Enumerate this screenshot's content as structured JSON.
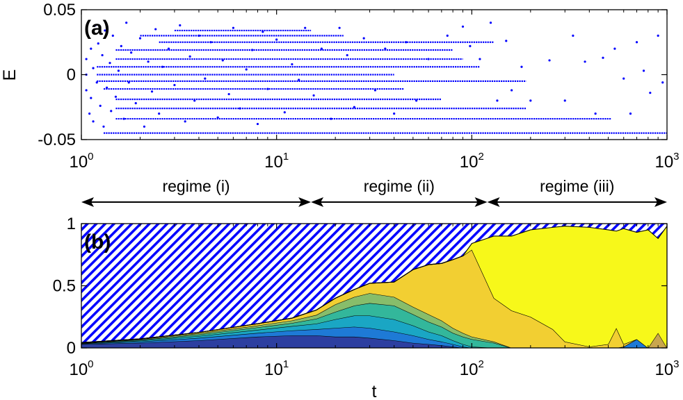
{
  "chart_data": [
    {
      "panel": "(a)",
      "type": "scatter",
      "xscale": "log",
      "xlim": [
        1,
        1000
      ],
      "ylim": [
        -0.05,
        0.05
      ],
      "ylabel": "E",
      "xlabel": "",
      "yticks": [
        "0.05",
        "0",
        "-0.05"
      ],
      "xticks": [
        {
          "base": "10",
          "exp": "0"
        },
        {
          "base": "10",
          "exp": "1"
        },
        {
          "base": "10",
          "exp": "2"
        },
        {
          "base": "10",
          "exp": "3"
        }
      ],
      "marker_color": "#0000ff",
      "points": [
        [
          1.06,
          0.012
        ],
        [
          1.06,
          0.0
        ],
        [
          1.06,
          -0.012
        ],
        [
          1.08,
          0.03
        ],
        [
          1.1,
          -0.03
        ],
        [
          1.12,
          0.02
        ],
        [
          1.12,
          -0.018
        ],
        [
          1.15,
          0.005
        ],
        [
          1.15,
          -0.036
        ],
        [
          1.18,
          0.038
        ],
        [
          1.2,
          -0.006
        ],
        [
          1.22,
          0.024
        ],
        [
          1.25,
          -0.024
        ],
        [
          1.28,
          0.015
        ],
        [
          1.3,
          -0.04
        ],
        [
          1.32,
          0.034
        ],
        [
          1.35,
          -0.01
        ],
        [
          1.4,
          0.009
        ],
        [
          1.42,
          -0.028
        ],
        [
          1.45,
          0.03
        ],
        [
          1.5,
          -0.017
        ],
        [
          1.55,
          0.003
        ],
        [
          1.6,
          0.022
        ],
        [
          1.65,
          -0.034
        ],
        [
          1.7,
          0.04
        ],
        [
          1.75,
          -0.006
        ],
        [
          1.8,
          0.017
        ],
        [
          1.9,
          -0.022
        ],
        [
          2.0,
          0.028
        ],
        [
          2.1,
          -0.04
        ],
        [
          2.2,
          0.01
        ],
        [
          2.3,
          -0.013
        ],
        [
          2.4,
          0.035
        ],
        [
          2.5,
          -0.03
        ],
        [
          2.6,
          0.006
        ],
        [
          2.8,
          0.02
        ],
        [
          3.0,
          -0.008
        ],
        [
          3.2,
          0.038
        ],
        [
          3.4,
          -0.036
        ],
        [
          3.6,
          0.014
        ],
        [
          3.8,
          -0.02
        ],
        [
          4.0,
          0.03
        ],
        [
          4.3,
          -0.003
        ],
        [
          4.6,
          0.025
        ],
        [
          5.0,
          -0.033
        ],
        [
          5.3,
          0.011
        ],
        [
          5.7,
          -0.015
        ],
        [
          6.0,
          0.036
        ],
        [
          6.5,
          -0.026
        ],
        [
          7.0,
          0.004
        ],
        [
          7.5,
          0.019
        ],
        [
          8.0,
          -0.038
        ],
        [
          8.5,
          0.033
        ],
        [
          9.0,
          -0.011
        ],
        [
          10.0,
          0.027
        ],
        [
          11.0,
          -0.029
        ],
        [
          12.0,
          0.008
        ],
        [
          13.0,
          -0.004
        ],
        [
          14.0,
          0.036
        ],
        [
          15.5,
          -0.016
        ],
        [
          17.0,
          0.02
        ],
        [
          19.0,
          -0.034
        ],
        [
          21.0,
          0.036
        ],
        [
          23.0,
          0.015
        ],
        [
          25.0,
          -0.025
        ],
        [
          28.0,
          0.028
        ],
        [
          32.0,
          -0.012
        ],
        [
          36.0,
          0.02
        ],
        [
          40.0,
          -0.03
        ],
        [
          46.0,
          0.025
        ],
        [
          52.0,
          -0.02
        ],
        [
          60.0,
          0.012
        ],
        [
          75.0,
          0.03
        ],
        [
          90.0,
          0.037
        ],
        [
          98.0,
          0.022
        ],
        [
          110.0,
          0.012
        ],
        [
          125.0,
          0.04
        ],
        [
          135.0,
          -0.02
        ],
        [
          150.0,
          0.026
        ],
        [
          160.0,
          -0.012
        ],
        [
          180.0,
          0.006
        ],
        [
          200.0,
          -0.02
        ],
        [
          250.0,
          0.011
        ],
        [
          300.0,
          -0.02
        ],
        [
          330.0,
          0.03
        ],
        [
          380.0,
          0.01
        ],
        [
          430.0,
          -0.03
        ],
        [
          470.0,
          0.013
        ],
        [
          540.0,
          0.02
        ],
        [
          600.0,
          -0.003
        ],
        [
          650.0,
          -0.03
        ],
        [
          700.0,
          0.025
        ],
        [
          760.0,
          0.003
        ],
        [
          820.0,
          -0.014
        ],
        [
          900.0,
          0.03
        ],
        [
          950.0,
          -0.006
        ]
      ],
      "segments": [
        {
          "y": -0.045,
          "x0": 1.3,
          "x1": 1000
        },
        {
          "y": -0.034,
          "x0": 1.5,
          "x1": 520
        },
        {
          "y": -0.026,
          "x0": 1.5,
          "x1": 190
        },
        {
          "y": -0.019,
          "x0": 1.5,
          "x1": 70
        },
        {
          "y": -0.011,
          "x0": 1.3,
          "x1": 45
        },
        {
          "y": -0.005,
          "x0": 1.2,
          "x1": 190
        },
        {
          "y": 0.0,
          "x0": 1.2,
          "x1": 40
        },
        {
          "y": 0.006,
          "x0": 1.2,
          "x1": 110
        },
        {
          "y": 0.012,
          "x0": 1.5,
          "x1": 90
        },
        {
          "y": 0.019,
          "x0": 1.5,
          "x1": 80
        },
        {
          "y": 0.025,
          "x0": 2.5,
          "x1": 130
        },
        {
          "y": 0.03,
          "x0": 2.0,
          "x1": 22
        },
        {
          "y": 0.034,
          "x0": 3.0,
          "x1": 15
        }
      ]
    },
    {
      "panel": "(b)",
      "type": "area",
      "stacked": true,
      "xscale": "log",
      "xlim": [
        1,
        1000
      ],
      "ylim": [
        0,
        1
      ],
      "xlabel": "t",
      "ylabel": "",
      "yticks": [
        "1",
        "0.5",
        "0"
      ],
      "xticks": [
        {
          "base": "10",
          "exp": "0"
        },
        {
          "base": "10",
          "exp": "1"
        },
        {
          "base": "10",
          "exp": "2"
        },
        {
          "base": "10",
          "exp": "3"
        }
      ],
      "hatch": {
        "color": "#0000ff",
        "fill_to": 1
      },
      "x": [
        1,
        2,
        4,
        8,
        12,
        16,
        20,
        25,
        30,
        40,
        50,
        60,
        70,
        80,
        90,
        100,
        130,
        160,
        200,
        260,
        300,
        400,
        500,
        550,
        600,
        700,
        800,
        900,
        1000
      ],
      "layers": [
        {
          "color": "#2d3fa0",
          "values": [
            0.03,
            0.04,
            0.06,
            0.09,
            0.1,
            0.1,
            0.09,
            0.09,
            0.08,
            0.06,
            0.04,
            0.03,
            0.02,
            0.01,
            0,
            0,
            0,
            0,
            0,
            0,
            0,
            0,
            0,
            0,
            0,
            0,
            0,
            0,
            0
          ]
        },
        {
          "color": "#1e7ad6",
          "values": [
            0.004,
            0.01,
            0.02,
            0.03,
            0.04,
            0.05,
            0.07,
            0.08,
            0.08,
            0.07,
            0.06,
            0.04,
            0.03,
            0.02,
            0.01,
            0,
            0,
            0,
            0,
            0,
            0,
            0,
            0,
            0,
            0.01,
            0.07,
            0,
            0,
            0
          ]
        },
        {
          "color": "#1aa6c4",
          "values": [
            0.003,
            0.008,
            0.015,
            0.025,
            0.035,
            0.045,
            0.07,
            0.09,
            0.1,
            0.1,
            0.08,
            0.06,
            0.05,
            0.03,
            0.02,
            0.01,
            0,
            0,
            0,
            0,
            0,
            0,
            0,
            0,
            0,
            0,
            0,
            0,
            0
          ]
        },
        {
          "color": "#33b79b",
          "values": [
            0.002,
            0.006,
            0.012,
            0.02,
            0.025,
            0.04,
            0.06,
            0.08,
            0.1,
            0.11,
            0.09,
            0.08,
            0.07,
            0.06,
            0.06,
            0.06,
            0.04,
            0,
            0,
            0,
            0,
            0,
            0,
            0,
            0,
            0,
            0,
            0,
            0
          ]
        },
        {
          "color": "#87bd6b",
          "values": [
            0.002,
            0.005,
            0.01,
            0.015,
            0.02,
            0.03,
            0.06,
            0.07,
            0.08,
            0.07,
            0.06,
            0.06,
            0.05,
            0.04,
            0.03,
            0.02,
            0.01,
            0,
            0,
            0,
            0,
            0,
            0,
            0,
            0,
            0,
            0,
            0,
            0
          ]
        },
        {
          "color": "#f2cf32",
          "values": [
            0.002,
            0.004,
            0.008,
            0.015,
            0.02,
            0.04,
            0.05,
            0.06,
            0.08,
            0.12,
            0.3,
            0.4,
            0.46,
            0.55,
            0.62,
            0.7,
            0.35,
            0.3,
            0.25,
            0.15,
            0.05,
            0.01,
            0.03,
            0.16,
            0.02,
            0,
            0,
            0,
            0
          ]
        },
        {
          "color": "#c9a64e",
          "values": [
            0,
            0,
            0,
            0,
            0,
            0,
            0,
            0,
            0,
            0,
            0,
            0,
            0,
            0,
            0,
            0,
            0,
            0,
            0,
            0,
            0,
            0,
            0,
            0,
            0,
            0,
            0,
            0.12,
            0
          ]
        },
        {
          "color": "#f7f81a",
          "values": [
            0,
            0,
            0,
            0,
            0,
            0,
            0,
            0,
            0,
            0,
            0,
            0,
            0,
            0,
            0,
            0.05,
            0.5,
            0.6,
            0.7,
            0.82,
            0.93,
            0.96,
            0.92,
            0.78,
            0.93,
            0.86,
            0.95,
            0.76,
            0.98
          ]
        }
      ],
      "layer_edge_color": "#000000"
    }
  ],
  "regimes": [
    {
      "label": "regime (i)",
      "x0": 1,
      "x1": 15
    },
    {
      "label": "regime (ii)",
      "x0": 15,
      "x1": 120
    },
    {
      "label": "regime (iii)",
      "x0": 120,
      "x1": 1000
    }
  ]
}
